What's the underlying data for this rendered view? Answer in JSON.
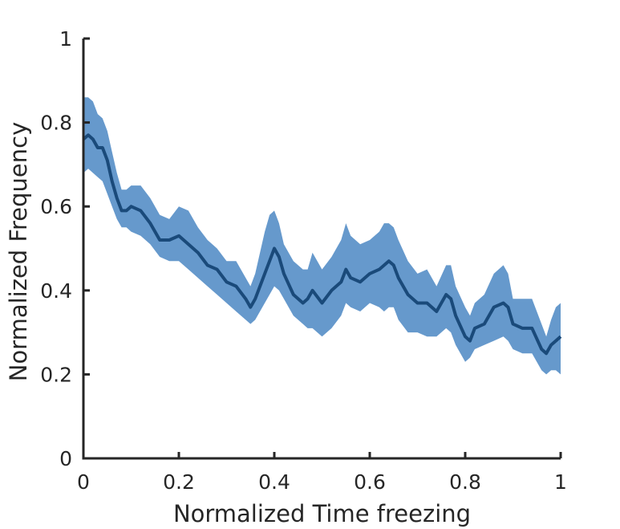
{
  "chart_data": {
    "type": "line",
    "title": "",
    "xlabel": "Normalized Time freezing",
    "ylabel": "Normalized Frequency",
    "xlim": [
      0,
      1
    ],
    "ylim": [
      0,
      1
    ],
    "xticks": [
      0,
      0.2,
      0.4,
      0.6,
      0.8,
      1
    ],
    "yticks": [
      0,
      0.2,
      0.4,
      0.6,
      0.8,
      1
    ],
    "xtick_labels": [
      "0",
      "0.2",
      "0.4",
      "0.6",
      "0.8",
      "1"
    ],
    "ytick_labels": [
      "0",
      "0.2",
      "0.4",
      "0.6",
      "0.8",
      "1"
    ],
    "grid": false,
    "legend": false,
    "colors": {
      "band": "#6699cc",
      "line": "#1a4a7a",
      "axis": "#262626"
    },
    "series": [
      {
        "name": "",
        "x": [
          0.0,
          0.01,
          0.02,
          0.03,
          0.04,
          0.05,
          0.06,
          0.07,
          0.08,
          0.09,
          0.1,
          0.12,
          0.14,
          0.16,
          0.18,
          0.2,
          0.22,
          0.24,
          0.26,
          0.28,
          0.3,
          0.32,
          0.34,
          0.35,
          0.36,
          0.38,
          0.39,
          0.4,
          0.41,
          0.42,
          0.44,
          0.46,
          0.47,
          0.48,
          0.5,
          0.52,
          0.54,
          0.55,
          0.56,
          0.58,
          0.6,
          0.62,
          0.63,
          0.64,
          0.65,
          0.66,
          0.68,
          0.7,
          0.72,
          0.74,
          0.76,
          0.77,
          0.78,
          0.8,
          0.81,
          0.82,
          0.84,
          0.86,
          0.88,
          0.89,
          0.9,
          0.92,
          0.94,
          0.96,
          0.97,
          0.98,
          0.99,
          1.0
        ],
        "values": [
          0.76,
          0.77,
          0.76,
          0.74,
          0.74,
          0.71,
          0.66,
          0.62,
          0.59,
          0.59,
          0.6,
          0.59,
          0.56,
          0.52,
          0.52,
          0.53,
          0.51,
          0.49,
          0.46,
          0.45,
          0.42,
          0.41,
          0.38,
          0.36,
          0.38,
          0.44,
          0.47,
          0.5,
          0.48,
          0.44,
          0.39,
          0.37,
          0.38,
          0.4,
          0.37,
          0.4,
          0.42,
          0.45,
          0.43,
          0.42,
          0.44,
          0.45,
          0.46,
          0.47,
          0.46,
          0.43,
          0.39,
          0.37,
          0.37,
          0.35,
          0.39,
          0.38,
          0.34,
          0.29,
          0.28,
          0.31,
          0.32,
          0.36,
          0.37,
          0.36,
          0.32,
          0.31,
          0.31,
          0.26,
          0.25,
          0.27,
          0.28,
          0.29
        ],
        "lower": [
          0.68,
          0.69,
          0.68,
          0.67,
          0.66,
          0.63,
          0.6,
          0.57,
          0.55,
          0.55,
          0.54,
          0.53,
          0.51,
          0.48,
          0.47,
          0.47,
          0.45,
          0.43,
          0.41,
          0.39,
          0.37,
          0.35,
          0.33,
          0.32,
          0.33,
          0.37,
          0.39,
          0.41,
          0.4,
          0.38,
          0.34,
          0.32,
          0.31,
          0.31,
          0.29,
          0.31,
          0.34,
          0.37,
          0.36,
          0.35,
          0.37,
          0.36,
          0.35,
          0.36,
          0.36,
          0.33,
          0.3,
          0.3,
          0.29,
          0.29,
          0.31,
          0.3,
          0.27,
          0.23,
          0.24,
          0.26,
          0.27,
          0.28,
          0.29,
          0.28,
          0.26,
          0.25,
          0.25,
          0.21,
          0.2,
          0.21,
          0.21,
          0.2
        ],
        "upper": [
          0.86,
          0.86,
          0.85,
          0.82,
          0.81,
          0.78,
          0.73,
          0.68,
          0.64,
          0.64,
          0.65,
          0.65,
          0.62,
          0.58,
          0.57,
          0.6,
          0.59,
          0.55,
          0.52,
          0.5,
          0.47,
          0.47,
          0.43,
          0.41,
          0.44,
          0.54,
          0.58,
          0.59,
          0.56,
          0.51,
          0.47,
          0.45,
          0.45,
          0.49,
          0.45,
          0.48,
          0.52,
          0.56,
          0.53,
          0.51,
          0.52,
          0.54,
          0.56,
          0.56,
          0.55,
          0.52,
          0.47,
          0.44,
          0.45,
          0.41,
          0.46,
          0.46,
          0.41,
          0.36,
          0.34,
          0.37,
          0.39,
          0.44,
          0.46,
          0.44,
          0.38,
          0.38,
          0.38,
          0.32,
          0.29,
          0.33,
          0.36,
          0.37
        ]
      }
    ]
  }
}
